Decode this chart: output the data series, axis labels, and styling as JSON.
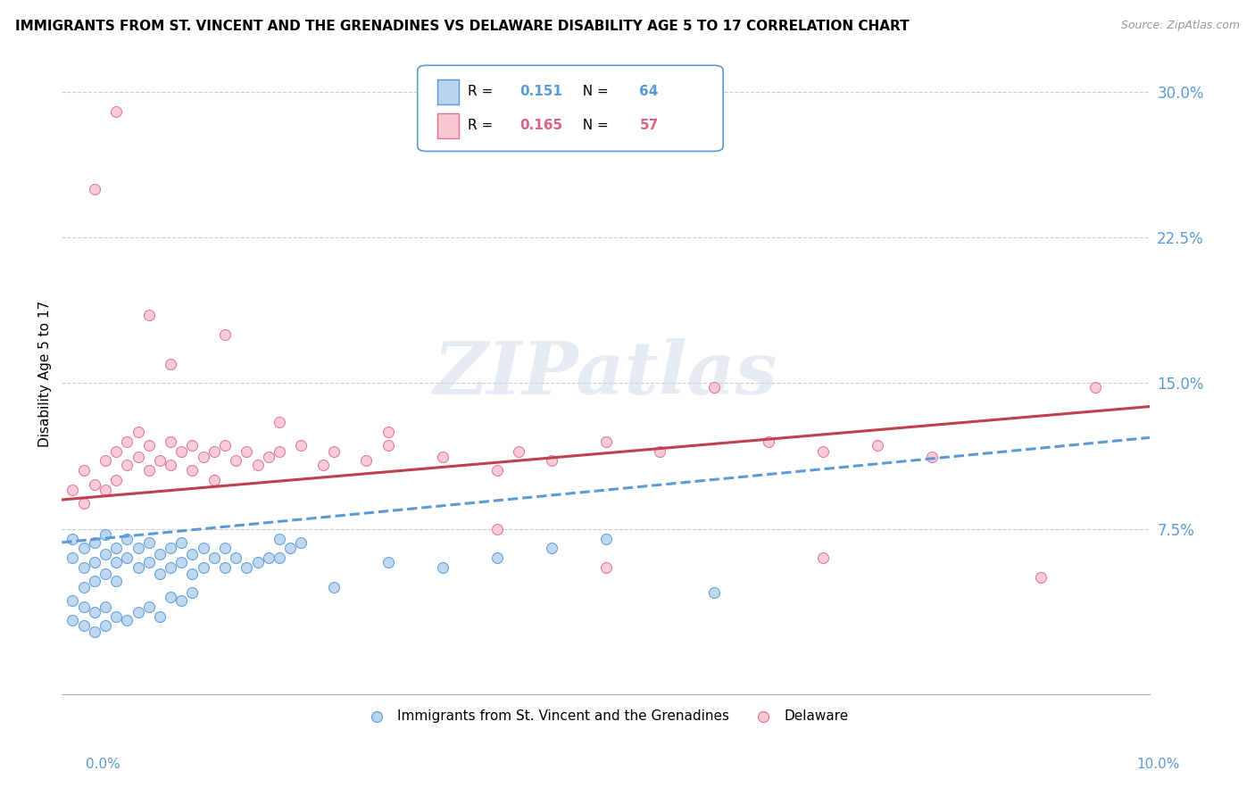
{
  "title": "IMMIGRANTS FROM ST. VINCENT AND THE GRENADINES VS DELAWARE DISABILITY AGE 5 TO 17 CORRELATION CHART",
  "source": "Source: ZipAtlas.com",
  "ylabel": "Disability Age 5 to 17",
  "xlim": [
    0.0,
    0.1
  ],
  "ylim": [
    -0.01,
    0.32
  ],
  "series1_label": "Immigrants from St. Vincent and the Grenadines",
  "series1_color": "#b8d4ee",
  "series1_edge_color": "#5b9bd5",
  "series1_R": "0.151",
  "series1_N": "64",
  "series2_label": "Delaware",
  "series2_color": "#f9c6d4",
  "series2_edge_color": "#e07090",
  "series2_R": "0.165",
  "series2_N": "57",
  "trend1_color": "#5b9bd5",
  "trend2_color": "#c0404f",
  "background_color": "#ffffff",
  "watermark": "ZIPatlas",
  "series1_x": [
    0.001,
    0.001,
    0.002,
    0.002,
    0.002,
    0.003,
    0.003,
    0.003,
    0.004,
    0.004,
    0.004,
    0.005,
    0.005,
    0.005,
    0.006,
    0.006,
    0.007,
    0.007,
    0.008,
    0.008,
    0.009,
    0.009,
    0.01,
    0.01,
    0.011,
    0.011,
    0.012,
    0.012,
    0.013,
    0.013,
    0.014,
    0.015,
    0.015,
    0.016,
    0.017,
    0.018,
    0.019,
    0.02,
    0.021,
    0.022,
    0.001,
    0.001,
    0.002,
    0.002,
    0.003,
    0.003,
    0.004,
    0.004,
    0.005,
    0.006,
    0.007,
    0.008,
    0.009,
    0.01,
    0.011,
    0.012,
    0.02,
    0.025,
    0.03,
    0.035,
    0.04,
    0.045,
    0.05,
    0.06
  ],
  "series1_y": [
    0.07,
    0.06,
    0.065,
    0.055,
    0.045,
    0.068,
    0.058,
    0.048,
    0.072,
    0.062,
    0.052,
    0.065,
    0.058,
    0.048,
    0.07,
    0.06,
    0.065,
    0.055,
    0.068,
    0.058,
    0.062,
    0.052,
    0.065,
    0.055,
    0.068,
    0.058,
    0.062,
    0.052,
    0.065,
    0.055,
    0.06,
    0.065,
    0.055,
    0.06,
    0.055,
    0.058,
    0.06,
    0.07,
    0.065,
    0.068,
    0.038,
    0.028,
    0.035,
    0.025,
    0.032,
    0.022,
    0.035,
    0.025,
    0.03,
    0.028,
    0.032,
    0.035,
    0.03,
    0.04,
    0.038,
    0.042,
    0.06,
    0.045,
    0.058,
    0.055,
    0.06,
    0.065,
    0.07,
    0.042
  ],
  "series2_x": [
    0.001,
    0.002,
    0.002,
    0.003,
    0.004,
    0.004,
    0.005,
    0.005,
    0.006,
    0.006,
    0.007,
    0.007,
    0.008,
    0.008,
    0.009,
    0.01,
    0.01,
    0.011,
    0.012,
    0.012,
    0.013,
    0.014,
    0.014,
    0.015,
    0.016,
    0.017,
    0.018,
    0.019,
    0.02,
    0.022,
    0.024,
    0.025,
    0.028,
    0.03,
    0.035,
    0.04,
    0.04,
    0.042,
    0.045,
    0.05,
    0.055,
    0.06,
    0.065,
    0.07,
    0.075,
    0.08,
    0.09,
    0.095,
    0.003,
    0.005,
    0.008,
    0.01,
    0.015,
    0.02,
    0.03,
    0.05,
    0.07
  ],
  "series2_y": [
    0.095,
    0.105,
    0.088,
    0.098,
    0.11,
    0.095,
    0.115,
    0.1,
    0.12,
    0.108,
    0.125,
    0.112,
    0.118,
    0.105,
    0.11,
    0.12,
    0.108,
    0.115,
    0.118,
    0.105,
    0.112,
    0.115,
    0.1,
    0.118,
    0.11,
    0.115,
    0.108,
    0.112,
    0.115,
    0.118,
    0.108,
    0.115,
    0.11,
    0.118,
    0.112,
    0.105,
    0.075,
    0.115,
    0.11,
    0.12,
    0.115,
    0.148,
    0.12,
    0.115,
    0.118,
    0.112,
    0.05,
    0.148,
    0.25,
    0.29,
    0.185,
    0.16,
    0.175,
    0.13,
    0.125,
    0.055,
    0.06
  ]
}
